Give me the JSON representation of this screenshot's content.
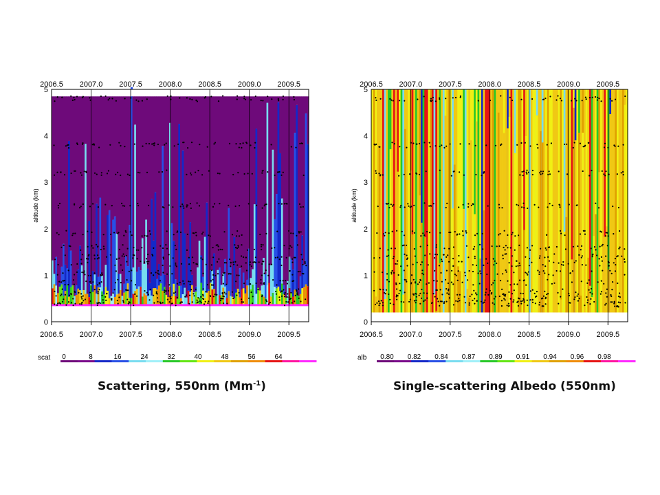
{
  "colors": {
    "scale": [
      "#6e0a7a",
      "#7a0a8a",
      "#1428c8",
      "#2850e6",
      "#78dcf0",
      "#a0f0f8",
      "#28c828",
      "#64e614",
      "#f0f014",
      "#f0c814",
      "#e0a000",
      "#f08c0a",
      "#e61414",
      "#ff14a0",
      "#ff28ff"
    ],
    "markers": "#000000",
    "frame": "#000000"
  },
  "captions": {
    "left": {
      "main": "Scattering, 550nm (Mm",
      "sup": "-1",
      "tail": ")"
    },
    "right": {
      "main": "Single-scattering  Albedo (550nm)"
    }
  },
  "chart_data": [
    {
      "type": "heatmap",
      "title": "",
      "xlabel": "",
      "ylabel": "altitude  (km)",
      "xlim": [
        2006.5,
        2009.75
      ],
      "ylim": [
        0,
        5
      ],
      "xticks": [
        "2006.5",
        "2007.0",
        "2007.5",
        "2008.0",
        "2008.5",
        "2009.0",
        "2009.5"
      ],
      "yticks": [
        "0",
        "1",
        "2",
        "3",
        "4",
        "5"
      ],
      "vertical_gridlines_at": [
        2007.0,
        2007.5,
        2008.0,
        2008.5,
        2009.0,
        2009.5
      ],
      "colorbar": {
        "label": "scat",
        "ticks": [
          "0",
          "8",
          "16",
          "24",
          "32",
          "40",
          "48",
          "56",
          "64"
        ],
        "range": [
          0,
          72
        ]
      },
      "background_value_at_high_altitude": 2,
      "flight_level_altitudes_km": [
        0.38,
        0.45,
        0.55,
        0.65,
        0.85,
        1.05,
        1.25,
        1.4,
        1.6,
        1.9,
        2.5,
        3.2,
        3.8,
        4.8
      ]
    },
    {
      "type": "heatmap",
      "title": "",
      "xlabel": "",
      "ylabel": "altitude  (km)",
      "xlim": [
        2006.5,
        2009.75
      ],
      "ylim": [
        0,
        5
      ],
      "xticks": [
        "2006.5",
        "2007.0",
        "2007.5",
        "2008.0",
        "2008.5",
        "2009.0",
        "2009.5"
      ],
      "yticks": [
        "0",
        "1",
        "2",
        "3",
        "4",
        "5"
      ],
      "vertical_gridlines_at": [
        2007.0,
        2007.5,
        2008.0,
        2008.5,
        2009.0,
        2009.5
      ],
      "colorbar": {
        "label": "alb",
        "ticks": [
          "0.80",
          "0.82",
          "0.84",
          "0.87",
          "0.89",
          "0.91",
          "0.94",
          "0.96",
          "0.98"
        ],
        "range": [
          0.8,
          1.0
        ]
      },
      "flight_level_altitudes_km": [
        0.38,
        0.45,
        0.55,
        0.65,
        0.85,
        1.05,
        1.25,
        1.4,
        1.6,
        1.9,
        2.5,
        3.2,
        3.8,
        4.8
      ]
    }
  ]
}
